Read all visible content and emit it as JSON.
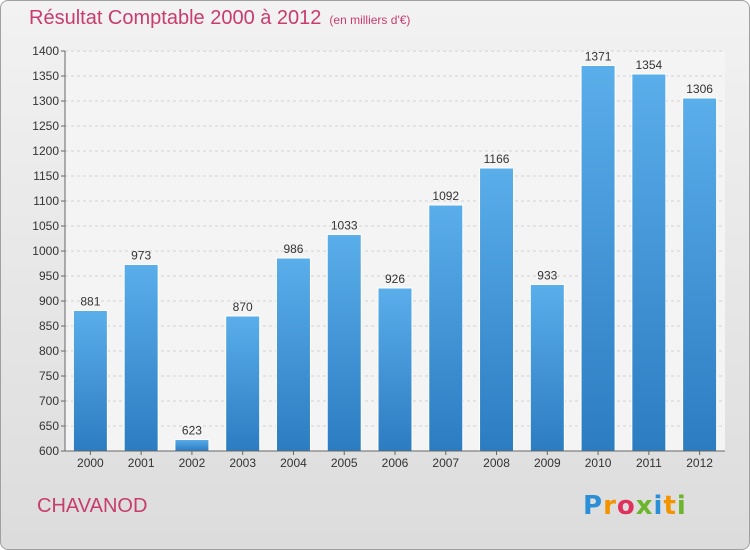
{
  "header": {
    "title": "Résultat Comptable 2000 à 2012",
    "subtitle": "(en milliers d'€)"
  },
  "footer": {
    "town": "CHAVANOD",
    "logo": "Proxiti"
  },
  "chart_data": {
    "type": "bar",
    "title": "Résultat Comptable 2000 à 2012",
    "subtitle": "(en milliers d'€)",
    "categories": [
      "2000",
      "2001",
      "2002",
      "2003",
      "2004",
      "2005",
      "2006",
      "2007",
      "2008",
      "2009",
      "2010",
      "2011",
      "2012"
    ],
    "values": [
      881,
      973,
      623,
      870,
      986,
      1033,
      926,
      1092,
      1166,
      933,
      1371,
      1354,
      1306
    ],
    "ylim": [
      600,
      1400
    ],
    "yticks": [
      600,
      650,
      700,
      750,
      800,
      850,
      900,
      950,
      1000,
      1050,
      1100,
      1150,
      1200,
      1250,
      1300,
      1350,
      1400
    ],
    "grid": true,
    "bar_color": "#3d8fd6",
    "title_color": "#c83c6e"
  }
}
